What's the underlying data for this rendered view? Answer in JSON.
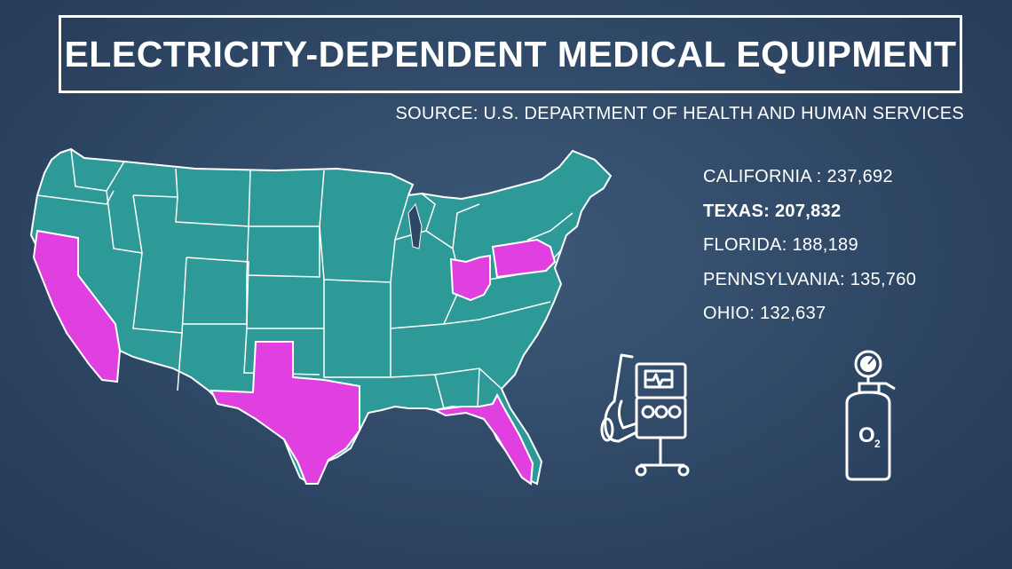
{
  "title": "ELECTRICITY-DEPENDENT MEDICAL EQUIPMENT",
  "source": "SOURCE: U.S. DEPARTMENT OF HEALTH AND HUMAN SERVICES",
  "colors": {
    "background": "#2e4765",
    "map_fill": "#2d9a98",
    "highlight_fill": "#e040e0",
    "state_border": "#ffffff"
  },
  "highlighted_states": [
    "California",
    "Texas",
    "Florida",
    "Pennsylvania",
    "Ohio"
  ],
  "stats": [
    {
      "label": "CALIFORNIA : 237,692",
      "bold": false
    },
    {
      "label": "TEXAS: 207,832",
      "bold": true
    },
    {
      "label": "FLORIDA: 188,189",
      "bold": false
    },
    {
      "label": "PENNSYLVANIA: 135,760",
      "bold": false
    },
    {
      "label": "OHIO:  132,637",
      "bold": false
    }
  ],
  "icons": {
    "ventilator": "ventilator-icon",
    "oxygen_tank": "oxygen-tank-icon",
    "oxygen_label": "O"
  }
}
